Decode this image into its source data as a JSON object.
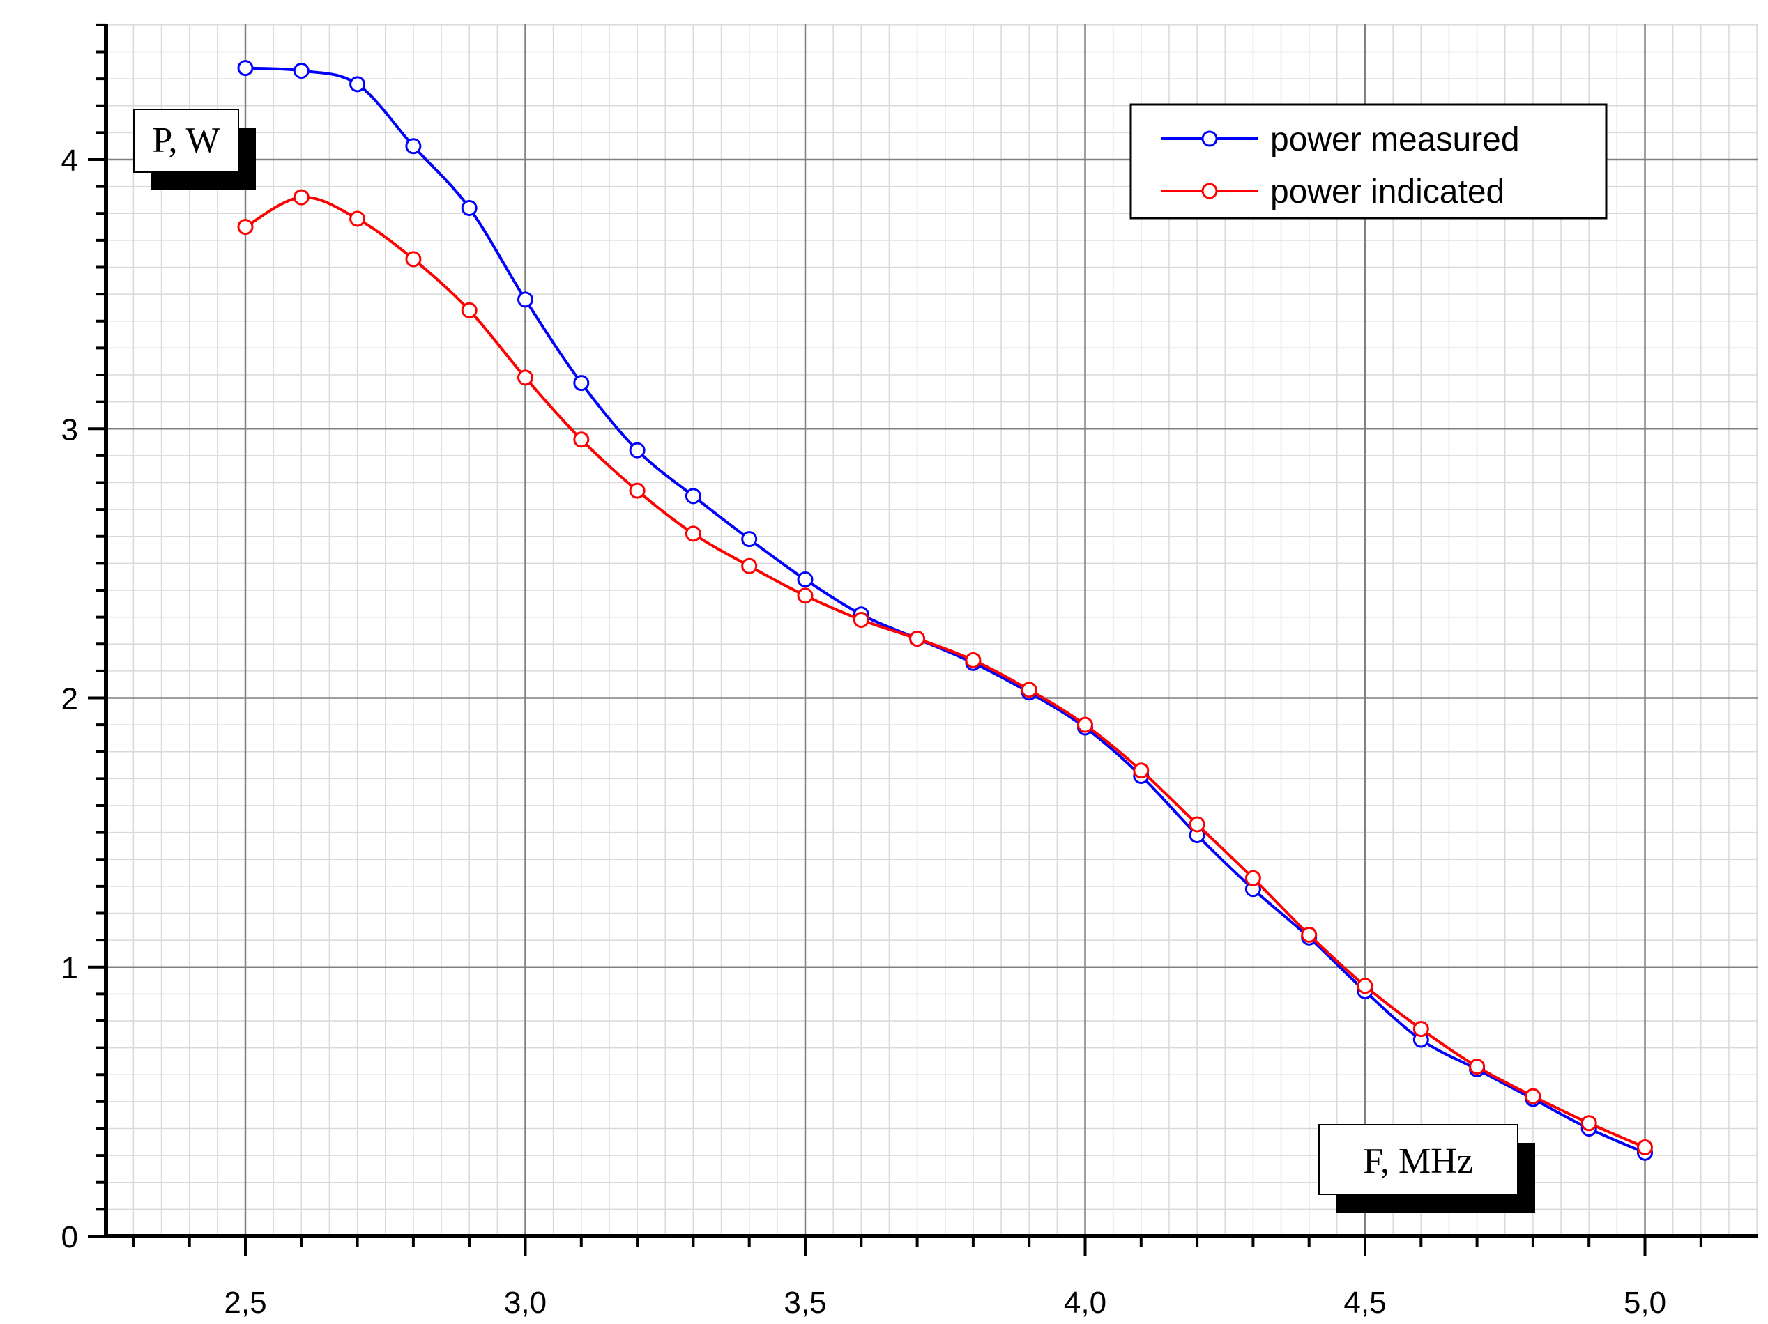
{
  "chart_data": {
    "type": "line",
    "title": "",
    "xlabel": "F, MHz",
    "ylabel": "P, W",
    "xlim": [
      2.25,
      5.2
    ],
    "ylim": [
      0,
      4.5
    ],
    "x_ticks": [
      2.5,
      3.0,
      3.5,
      4.0,
      4.5,
      5.0
    ],
    "x_tick_labels": [
      "2,5",
      "3,0",
      "3,5",
      "4,0",
      "4,5",
      "5,0"
    ],
    "y_ticks": [
      0,
      1,
      2,
      3,
      4
    ],
    "y_tick_labels": [
      "0",
      "1",
      "2",
      "3",
      "4"
    ],
    "grid": true,
    "legend_position": "top-right",
    "x": [
      2.5,
      2.6,
      2.7,
      2.8,
      2.9,
      3.0,
      3.1,
      3.2,
      3.3,
      3.4,
      3.5,
      3.6,
      3.7,
      3.8,
      3.9,
      4.0,
      4.1,
      4.2,
      4.3,
      4.4,
      4.5,
      4.6,
      4.7,
      4.8,
      4.9,
      5.0
    ],
    "series": [
      {
        "name": "power measured",
        "color": "#0000ff",
        "marker": "circle",
        "values": [
          4.34,
          4.33,
          4.28,
          4.05,
          3.82,
          3.48,
          3.17,
          2.92,
          2.75,
          2.59,
          2.44,
          2.31,
          2.22,
          2.13,
          2.02,
          1.89,
          1.71,
          1.49,
          1.29,
          1.11,
          0.91,
          0.73,
          0.62,
          0.51,
          0.4,
          0.31
        ]
      },
      {
        "name": "power indicated",
        "color": "#ff0000",
        "marker": "circle",
        "values": [
          3.75,
          3.86,
          3.78,
          3.63,
          3.44,
          3.19,
          2.96,
          2.77,
          2.61,
          2.49,
          2.38,
          2.29,
          2.22,
          2.14,
          2.03,
          1.9,
          1.73,
          1.53,
          1.33,
          1.12,
          0.93,
          0.77,
          0.63,
          0.52,
          0.42,
          0.33
        ]
      }
    ]
  }
}
